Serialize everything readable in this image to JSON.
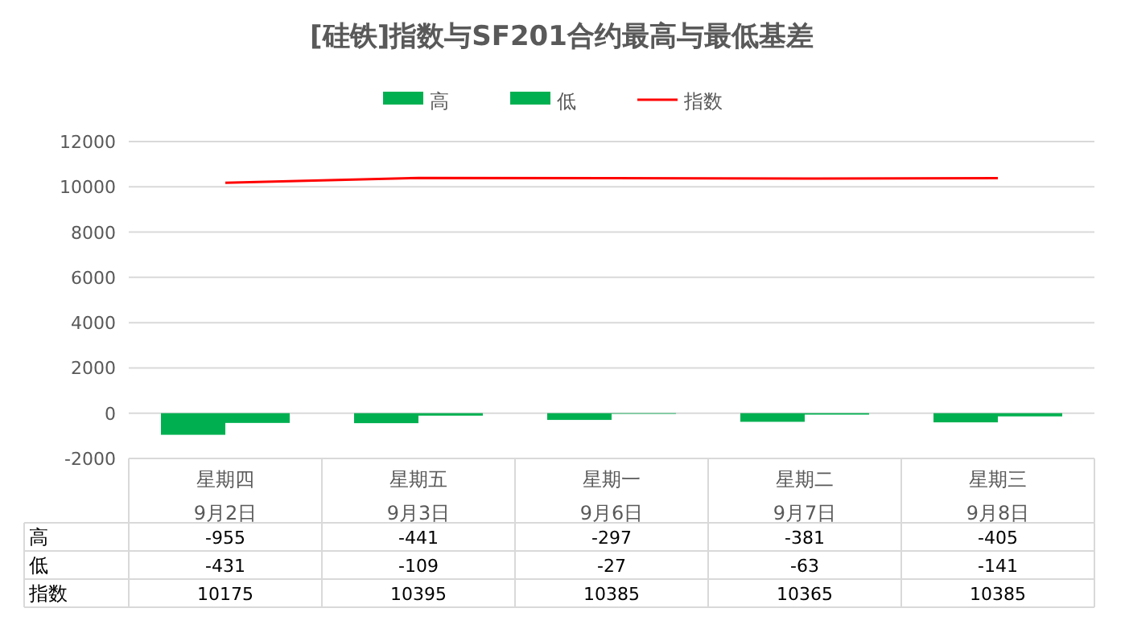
{
  "chart_data": {
    "type": "bar",
    "title": "[硅铁]指数与SF201合约最高与最低基差",
    "categories": [
      "星期四\n9月2日",
      "星期五\n9月3日",
      "星期一\n9月6日",
      "星期二\n9月7日",
      "星期三\n9月8日"
    ],
    "series": [
      {
        "name": "高",
        "color": "#00b050",
        "values": [
          -955,
          -441,
          -297,
          -381,
          -405
        ]
      },
      {
        "name": "低",
        "color": "#00b050",
        "values": [
          -431,
          -109,
          -27,
          -63,
          -141
        ]
      },
      {
        "name": "指数",
        "type": "line",
        "color": "#ff0000",
        "values": [
          10175,
          10395,
          10385,
          10365,
          10385
        ]
      }
    ],
    "ylim": [
      -2000,
      12000
    ],
    "yticks": [
      -2000,
      0,
      2000,
      4000,
      6000,
      8000,
      10000,
      12000
    ],
    "grid": "y",
    "legend": "top",
    "data_labels": true
  }
}
